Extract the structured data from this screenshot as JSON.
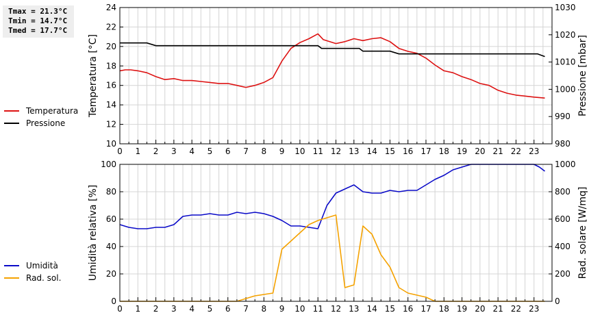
{
  "stats": {
    "tmax": "Tmax = 21.3°C",
    "tmin": "Tmin = 14.7°C",
    "tmed": "Tmed = 17.7°C"
  },
  "colors": {
    "temperature": "#dd1111",
    "pressure": "#000000",
    "humidity": "#0a0ac8",
    "radiation": "#f5a200",
    "grid": "#d4d4d4"
  },
  "chart_data": [
    {
      "type": "line",
      "xlabel": "",
      "ylabel": "Temperatura [°C]",
      "y2label": "Pressione [mbar]",
      "xlim": [
        0,
        24
      ],
      "xticks": [
        0,
        1,
        2,
        3,
        4,
        5,
        6,
        7,
        8,
        9,
        10,
        11,
        12,
        13,
        14,
        15,
        16,
        17,
        18,
        19,
        20,
        21,
        22,
        23
      ],
      "ylim": [
        10,
        24
      ],
      "yticks": [
        10,
        12,
        14,
        16,
        18,
        20,
        22,
        24
      ],
      "y2lim": [
        980,
        1030
      ],
      "y2ticks": [
        980,
        990,
        1000,
        1010,
        1020,
        1030
      ],
      "grid": true,
      "legend_position": "left",
      "series": [
        {
          "name": "Temperatura",
          "axis": "left",
          "color": "#dd1111",
          "points": [
            [
              0,
              17.5
            ],
            [
              0.3,
              17.6
            ],
            [
              0.6,
              17.6
            ],
            [
              1,
              17.5
            ],
            [
              1.5,
              17.3
            ],
            [
              2,
              16.9
            ],
            [
              2.5,
              16.6
            ],
            [
              3,
              16.7
            ],
            [
              3.5,
              16.5
            ],
            [
              4,
              16.5
            ],
            [
              4.5,
              16.4
            ],
            [
              5,
              16.3
            ],
            [
              5.5,
              16.2
            ],
            [
              6,
              16.2
            ],
            [
              6.5,
              16.0
            ],
            [
              7,
              15.8
            ],
            [
              7.5,
              16.0
            ],
            [
              8,
              16.3
            ],
            [
              8.5,
              16.8
            ],
            [
              9,
              18.5
            ],
            [
              9.5,
              19.8
            ],
            [
              10,
              20.4
            ],
            [
              10.5,
              20.8
            ],
            [
              11,
              21.3
            ],
            [
              11.3,
              20.7
            ],
            [
              12,
              20.3
            ],
            [
              12.5,
              20.5
            ],
            [
              13,
              20.8
            ],
            [
              13.5,
              20.6
            ],
            [
              14,
              20.8
            ],
            [
              14.5,
              20.9
            ],
            [
              15,
              20.5
            ],
            [
              15.5,
              19.8
            ],
            [
              16,
              19.5
            ],
            [
              16.5,
              19.3
            ],
            [
              17,
              18.8
            ],
            [
              17.5,
              18.1
            ],
            [
              18,
              17.5
            ],
            [
              18.5,
              17.3
            ],
            [
              19,
              16.9
            ],
            [
              19.5,
              16.6
            ],
            [
              20,
              16.2
            ],
            [
              20.5,
              16.0
            ],
            [
              21,
              15.5
            ],
            [
              21.5,
              15.2
            ],
            [
              22,
              15.0
            ],
            [
              22.5,
              14.9
            ],
            [
              23,
              14.8
            ],
            [
              23.6,
              14.7
            ]
          ]
        },
        {
          "name": "Pressione",
          "axis": "right",
          "color": "#000000",
          "points": [
            [
              0,
              1017
            ],
            [
              1.5,
              1017
            ],
            [
              2,
              1016
            ],
            [
              10.5,
              1016
            ],
            [
              11,
              1016
            ],
            [
              11.2,
              1015
            ],
            [
              13.3,
              1015
            ],
            [
              13.5,
              1014
            ],
            [
              15,
              1014
            ],
            [
              15.5,
              1013
            ],
            [
              23.2,
              1013
            ],
            [
              23.6,
              1012
            ]
          ]
        }
      ]
    },
    {
      "type": "line",
      "xlabel": "",
      "ylabel": "Umidità relativa [%]",
      "y2label": "Rad. solare [W/mq]",
      "xlim": [
        0,
        24
      ],
      "xticks": [
        0,
        1,
        2,
        3,
        4,
        5,
        6,
        7,
        8,
        9,
        10,
        11,
        12,
        13,
        14,
        15,
        16,
        17,
        18,
        19,
        20,
        21,
        22,
        23
      ],
      "ylim": [
        0,
        100
      ],
      "yticks": [
        0,
        20,
        40,
        60,
        80,
        100
      ],
      "y2lim": [
        0,
        1000
      ],
      "y2ticks": [
        0,
        200,
        400,
        600,
        800,
        1000
      ],
      "grid": true,
      "legend_position": "left",
      "series": [
        {
          "name": "Umidità",
          "axis": "left",
          "color": "#0a0ac8",
          "points": [
            [
              0,
              56
            ],
            [
              0.5,
              54
            ],
            [
              1,
              53
            ],
            [
              1.5,
              53
            ],
            [
              2,
              54
            ],
            [
              2.5,
              54
            ],
            [
              3,
              56
            ],
            [
              3.5,
              62
            ],
            [
              4,
              63
            ],
            [
              4.5,
              63
            ],
            [
              5,
              64
            ],
            [
              5.5,
              63
            ],
            [
              6,
              63
            ],
            [
              6.5,
              65
            ],
            [
              7,
              64
            ],
            [
              7.5,
              65
            ],
            [
              8,
              64
            ],
            [
              8.5,
              62
            ],
            [
              9,
              59
            ],
            [
              9.5,
              55
            ],
            [
              10,
              55
            ],
            [
              10.5,
              54
            ],
            [
              11,
              53
            ],
            [
              11.5,
              70
            ],
            [
              12,
              79
            ],
            [
              12.5,
              82
            ],
            [
              13,
              85
            ],
            [
              13.5,
              80
            ],
            [
              14,
              79
            ],
            [
              14.5,
              79
            ],
            [
              15,
              81
            ],
            [
              15.5,
              80
            ],
            [
              16,
              81
            ],
            [
              16.5,
              81
            ],
            [
              17,
              85
            ],
            [
              17.5,
              89
            ],
            [
              18,
              92
            ],
            [
              18.5,
              96
            ],
            [
              19,
              98
            ],
            [
              19.5,
              100
            ],
            [
              23,
              100
            ],
            [
              23.3,
              98
            ],
            [
              23.6,
              95
            ]
          ]
        },
        {
          "name": "Rad. sol.",
          "axis": "right",
          "color": "#f5a200",
          "points": [
            [
              0,
              0
            ],
            [
              6.5,
              0
            ],
            [
              7,
              20
            ],
            [
              7.5,
              40
            ],
            [
              8,
              50
            ],
            [
              8.5,
              60
            ],
            [
              9,
              380
            ],
            [
              9.5,
              440
            ],
            [
              10,
              500
            ],
            [
              10.5,
              560
            ],
            [
              11,
              590
            ],
            [
              11.5,
              610
            ],
            [
              12,
              630
            ],
            [
              12.5,
              100
            ],
            [
              13,
              120
            ],
            [
              13.5,
              550
            ],
            [
              14,
              490
            ],
            [
              14.5,
              340
            ],
            [
              15,
              250
            ],
            [
              15.5,
              100
            ],
            [
              16,
              60
            ],
            [
              16.5,
              45
            ],
            [
              17,
              30
            ],
            [
              17.5,
              0
            ],
            [
              23.6,
              0
            ]
          ]
        }
      ]
    }
  ]
}
